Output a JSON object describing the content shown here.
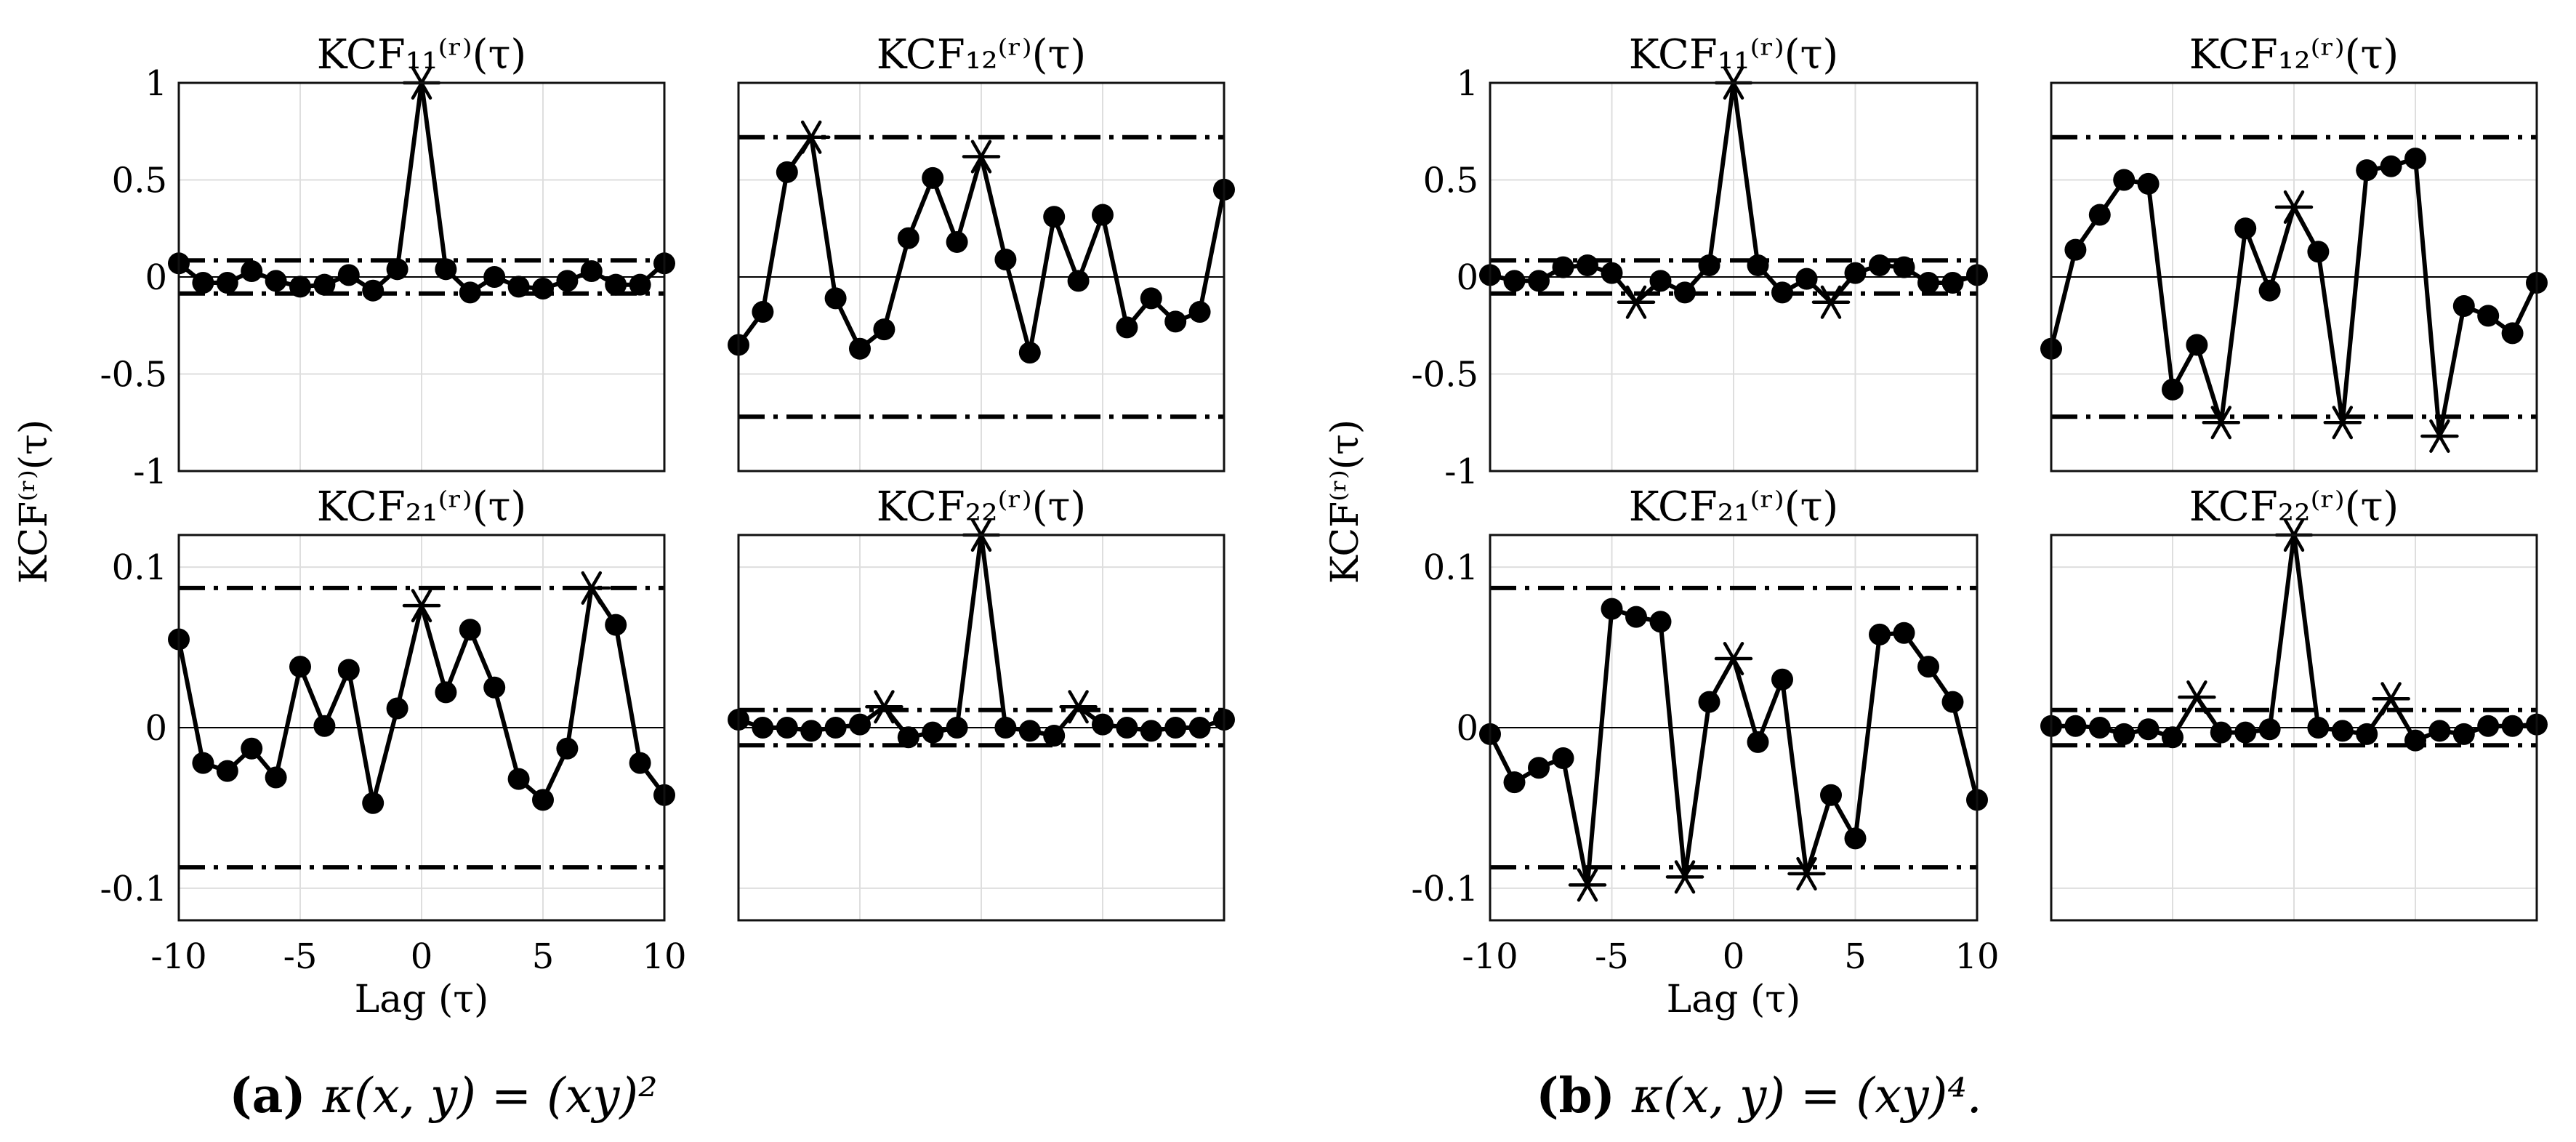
{
  "chart_data": [
    {
      "id": "a",
      "type": "line",
      "caption_label": "(a)",
      "caption_formula": "κ(x, y) = (xy)²",
      "ylabel": "KCF⁽ʳ⁾(τ)",
      "xlabel": "Lag (τ)",
      "x": [
        -10,
        -9,
        -8,
        -7,
        -6,
        -5,
        -4,
        -3,
        -2,
        -1,
        0,
        1,
        2,
        3,
        4,
        5,
        6,
        7,
        8,
        9,
        10
      ],
      "xticks": [
        "-10",
        "-5",
        "0",
        "5",
        "10"
      ],
      "xlim": [
        -10,
        10
      ],
      "subplots": [
        {
          "title": "KCF₁₁⁽ʳ⁾(τ)",
          "ylim": [
            -1,
            1
          ],
          "yticks": [
            "-1",
            "-0.5",
            "0",
            "0.5",
            "1"
          ],
          "bounds": [
            0.085,
            -0.085
          ],
          "values": [
            0.07,
            -0.03,
            -0.03,
            0.03,
            -0.02,
            -0.05,
            -0.04,
            0.01,
            -0.07,
            0.04,
            1.0,
            0.04,
            -0.08,
            0.0,
            -0.05,
            -0.06,
            -0.02,
            0.03,
            -0.04,
            -0.04,
            0.07
          ],
          "significant_lags": [
            0
          ]
        },
        {
          "title": "KCF₁₂⁽ʳ⁾(τ)",
          "ylim": [
            -1,
            1
          ],
          "yticks": [],
          "bounds": [
            0.72,
            -0.72
          ],
          "values": [
            -0.35,
            -0.18,
            0.54,
            0.72,
            -0.11,
            -0.37,
            -0.27,
            0.2,
            0.51,
            0.18,
            0.62,
            0.09,
            -0.39,
            0.31,
            -0.02,
            0.32,
            -0.26,
            -0.11,
            -0.23,
            -0.18,
            0.45
          ],
          "significant_lags": [
            -7,
            0
          ]
        },
        {
          "title": "KCF₂₁⁽ʳ⁾(τ)",
          "ylim": [
            -0.12,
            0.12
          ],
          "yticks": [
            "-0.1",
            "0",
            "0.1"
          ],
          "bounds": [
            0.087,
            -0.087
          ],
          "values": [
            0.055,
            -0.022,
            -0.027,
            -0.013,
            -0.031,
            0.038,
            0.001,
            0.036,
            -0.047,
            0.012,
            0.076,
            0.022,
            0.061,
            0.025,
            -0.032,
            -0.045,
            -0.013,
            0.087,
            0.064,
            -0.022,
            -0.042
          ],
          "significant_lags": [
            0,
            7
          ]
        },
        {
          "title": "KCF₂₂⁽ʳ⁾(τ)",
          "ylim": [
            -0.12,
            0.12
          ],
          "yticks": [],
          "bounds": [
            0.011,
            -0.011
          ],
          "values": [
            0.005,
            0.0,
            0.0,
            -0.002,
            0.0,
            0.002,
            0.013,
            -0.006,
            -0.003,
            0.0,
            0.12,
            0.0,
            -0.002,
            -0.005,
            0.013,
            0.002,
            0.0,
            -0.002,
            0.0,
            0.0,
            0.005
          ],
          "significant_lags": [
            -4,
            0,
            4
          ]
        }
      ]
    },
    {
      "id": "b",
      "type": "line",
      "caption_label": "(b)",
      "caption_formula": "κ(x, y) = (xy)⁴.",
      "ylabel": "KCF⁽ʳ⁾(τ)",
      "xlabel": "Lag (τ)",
      "x": [
        -10,
        -9,
        -8,
        -7,
        -6,
        -5,
        -4,
        -3,
        -2,
        -1,
        0,
        1,
        2,
        3,
        4,
        5,
        6,
        7,
        8,
        9,
        10
      ],
      "xticks": [
        "-10",
        "-5",
        "0",
        "5",
        "10"
      ],
      "xlim": [
        -10,
        10
      ],
      "subplots": [
        {
          "title": "KCF₁₁⁽ʳ⁾(τ)",
          "ylim": [
            -1,
            1
          ],
          "yticks": [
            "-1",
            "-0.5",
            "0",
            "0.5",
            "1"
          ],
          "bounds": [
            0.085,
            -0.085
          ],
          "values": [
            0.01,
            -0.02,
            -0.02,
            0.05,
            0.06,
            0.02,
            -0.13,
            -0.02,
            -0.08,
            0.06,
            1.0,
            0.06,
            -0.08,
            -0.01,
            -0.13,
            0.02,
            0.06,
            0.05,
            -0.03,
            -0.03,
            0.01
          ],
          "significant_lags": [
            -4,
            0,
            4
          ]
        },
        {
          "title": "KCF₁₂⁽ʳ⁾(τ)",
          "ylim": [
            -1,
            1
          ],
          "yticks": [],
          "bounds": [
            0.72,
            -0.72
          ],
          "values": [
            -0.37,
            0.14,
            0.32,
            0.5,
            0.48,
            -0.58,
            -0.35,
            -0.75,
            0.25,
            -0.07,
            0.36,
            0.13,
            -0.75,
            0.55,
            0.57,
            0.61,
            -0.82,
            -0.15,
            -0.2,
            -0.29,
            -0.03
          ],
          "significant_lags": [
            -3,
            0,
            2,
            6
          ]
        },
        {
          "title": "KCF₂₁⁽ʳ⁾(τ)",
          "ylim": [
            -0.12,
            0.12
          ],
          "yticks": [
            "-0.1",
            "0",
            "0.1"
          ],
          "bounds": [
            0.087,
            -0.087
          ],
          "values": [
            -0.004,
            -0.034,
            -0.025,
            -0.019,
            -0.098,
            0.074,
            0.069,
            0.066,
            -0.093,
            0.016,
            0.043,
            -0.009,
            0.03,
            -0.091,
            -0.042,
            -0.069,
            0.058,
            0.059,
            0.038,
            0.016,
            -0.045
          ],
          "significant_lags": [
            -6,
            -2,
            0,
            3
          ]
        },
        {
          "title": "KCF₂₂⁽ʳ⁾(τ)",
          "ylim": [
            -0.12,
            0.12
          ],
          "yticks": [],
          "bounds": [
            0.011,
            -0.011
          ],
          "values": [
            0.001,
            0.001,
            0.0,
            -0.004,
            -0.001,
            -0.006,
            0.019,
            -0.003,
            -0.003,
            -0.001,
            0.12,
            0.0,
            -0.002,
            -0.004,
            0.018,
            -0.008,
            -0.002,
            -0.004,
            0.001,
            0.001,
            0.002
          ],
          "significant_lags": [
            -4,
            0,
            4
          ]
        }
      ]
    }
  ]
}
